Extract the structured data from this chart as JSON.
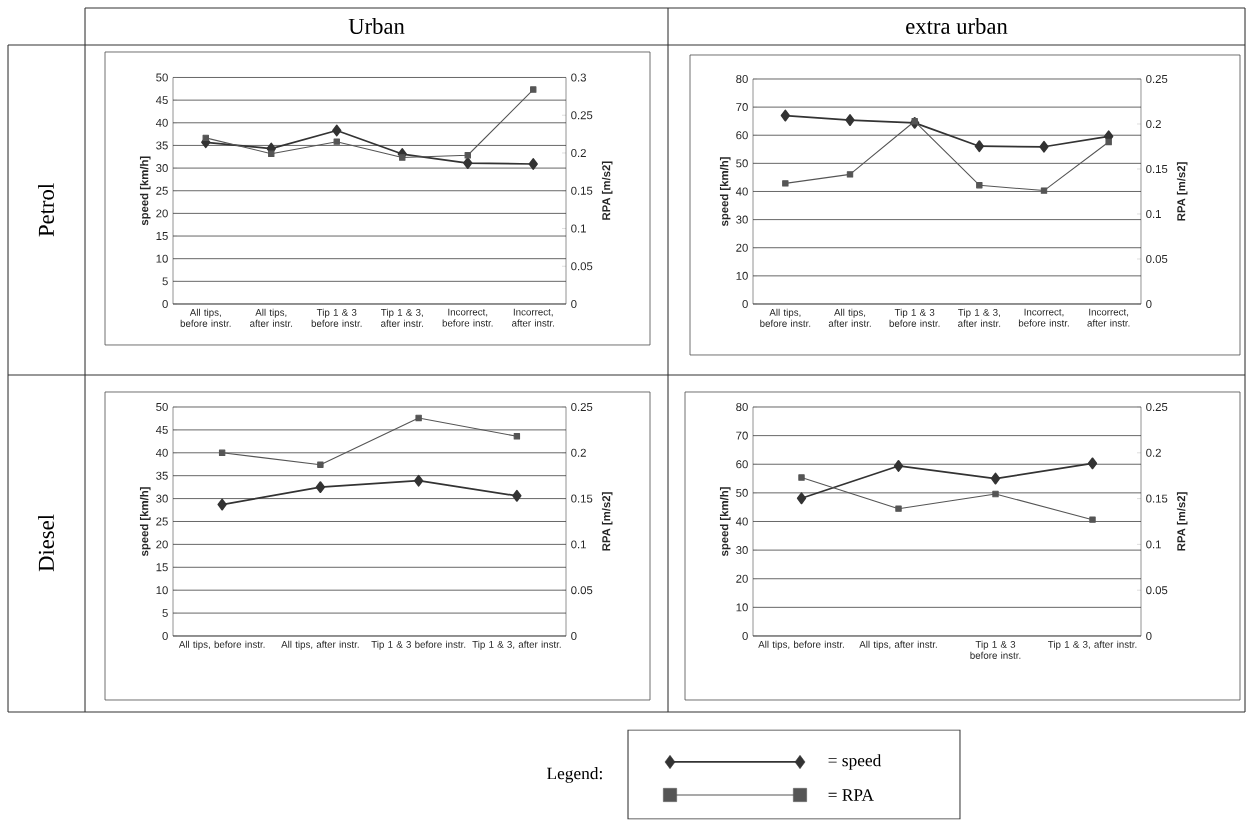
{
  "chart_data": [
    {
      "type": "line",
      "title": "Urban",
      "annotations": [
        "Petrol"
      ],
      "xlabel": null,
      "ylabel": "speed [km/h]",
      "y2label": "RPA [m/s2]",
      "categories": [
        "All tips, before instr.",
        "All tips, after instr.",
        "Tip 1 & 3 before instr.",
        "Tip 1 & 3, after instr.",
        "Incorrect, before instr.",
        "Incorrect, after instr."
      ],
      "series": [
        {
          "color": "#333333",
          "marker": "diamond",
          "values": [
            35.7,
            34.3,
            38.3,
            33.1,
            31.1,
            30.9
          ]
        },
        {
          "color": "#555555",
          "marker": "square",
          "axis": "y2",
          "values": [
            0.22,
            0.199,
            0.215,
            0.194,
            0.197,
            0.284
          ]
        }
      ],
      "ylim": [
        0,
        50
      ],
      "yticks": [
        0,
        5,
        10,
        15,
        20,
        25,
        30,
        35,
        40,
        45,
        50
      ],
      "y2lim": [
        0,
        0.3
      ],
      "y2ticks": [
        0,
        0.05,
        0.1,
        0.15,
        0.2,
        0.25,
        0.3
      ],
      "grid": "y",
      "line_style": "solid"
    },
    {
      "type": "line",
      "title": "extra urban",
      "ylabel": "speed [km/h]",
      "y2label": "RPA [m/s2]",
      "categories": [
        "All tips, before instr.",
        "All tips, after instr.",
        "Tip 1 & 3 before instr.",
        "Tip 1 & 3, after instr.",
        "Incorrect, before instr.",
        "Incorrect, after instr."
      ],
      "series": [
        {
          "color": "#333333",
          "marker": "diamond",
          "values": [
            67.0,
            65.4,
            64.4,
            56.1,
            55.9,
            59.6
          ]
        },
        {
          "color": "#555555",
          "marker": "square",
          "axis": "y2",
          "values": [
            0.134,
            0.144,
            0.203,
            0.132,
            0.126,
            0.18
          ]
        }
      ],
      "ylim": [
        0,
        80
      ],
      "yticks": [
        0,
        10,
        20,
        30,
        40,
        50,
        60,
        70,
        80
      ],
      "y2lim": [
        0,
        0.25
      ],
      "y2ticks": [
        0,
        0.05,
        0.1,
        0.15,
        0.2,
        0.25
      ],
      "grid": "y",
      "line_style": "solid"
    },
    {
      "type": "line",
      "annotations": [
        "Diesel"
      ],
      "ylabel": "speed [km/h]",
      "y2label": "RPA [m/s2]",
      "categories": [
        "All tips, before instr.",
        "All tips, after instr.",
        "Tip 1 & 3 before instr.",
        "Tip 1 & 3, after instr."
      ],
      "series": [
        {
          "color": "#333333",
          "marker": "diamond",
          "values": [
            28.7,
            32.5,
            33.9,
            30.6
          ]
        },
        {
          "color": "#555555",
          "marker": "square",
          "axis": "y2",
          "values": [
            0.2,
            0.187,
            0.238,
            0.218
          ]
        }
      ],
      "ylim": [
        0,
        50
      ],
      "yticks": [
        0,
        5,
        10,
        15,
        20,
        25,
        30,
        35,
        40,
        45,
        50
      ],
      "y2lim": [
        0,
        0.25
      ],
      "y2ticks": [
        0,
        0.05,
        0.1,
        0.15,
        0.2,
        0.25
      ],
      "grid": "y",
      "line_style": "solid"
    },
    {
      "type": "line",
      "ylabel": "speed [km/h]",
      "y2label": "RPA [m/s2]",
      "legend": "bottom",
      "legend_title": "Legend:",
      "categories": [
        "All tips, before instr.",
        "All tips, after instr.",
        "Tip 1 & 3 before instr.",
        "Tip 1 & 3, after instr."
      ],
      "series": [
        {
          "name": "= speed",
          "color": "#333333",
          "marker": "diamond",
          "values": [
            48.1,
            59.4,
            55.0,
            60.3
          ]
        },
        {
          "name": "= RPA",
          "color": "#555555",
          "marker": "square",
          "axis": "y2",
          "values": [
            0.173,
            0.139,
            0.155,
            0.127
          ]
        }
      ],
      "ylim": [
        0,
        80
      ],
      "yticks": [
        0,
        10,
        20,
        30,
        40,
        50,
        60,
        70,
        80
      ],
      "y2lim": [
        0,
        0.25
      ],
      "y2ticks": [
        0,
        0.05,
        0.1,
        0.15,
        0.2,
        0.25
      ],
      "grid": "y",
      "line_style": "solid"
    }
  ]
}
